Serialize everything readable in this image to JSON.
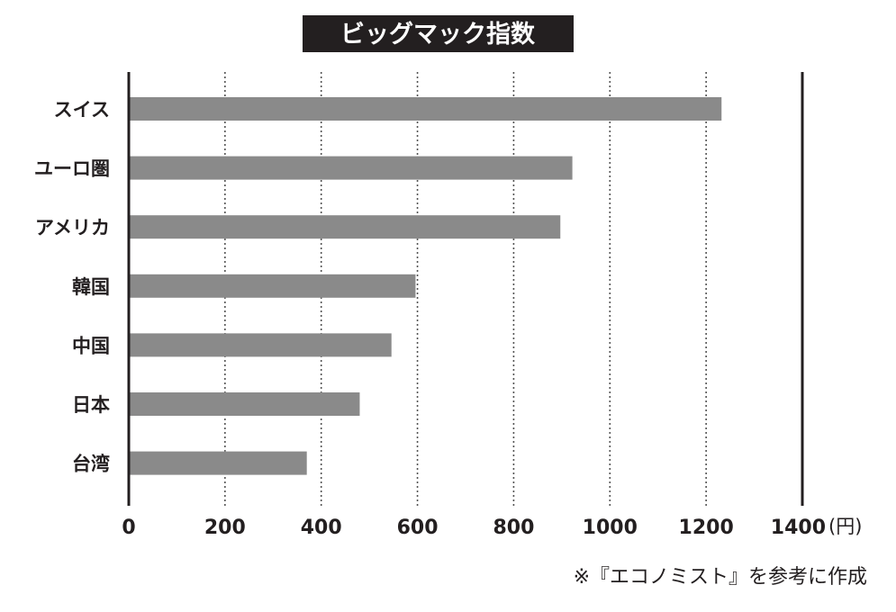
{
  "chart_data": {
    "type": "bar",
    "orientation": "horizontal",
    "title": "ビッグマック指数",
    "categories": [
      "スイス",
      "ユーロ圏",
      "アメリカ",
      "韓国",
      "中国",
      "日本",
      "台湾"
    ],
    "values": [
      1232,
      922,
      897,
      596,
      546,
      480,
      370
    ],
    "xlim": [
      0,
      1400
    ],
    "xticks": [
      0,
      200,
      400,
      600,
      800,
      1000,
      1200,
      1400
    ],
    "x_unit": "(円)",
    "grid": "vertical dotted",
    "bar_color": "#8a8a8a",
    "source": "※『エコノミスト』を参考に作成"
  }
}
